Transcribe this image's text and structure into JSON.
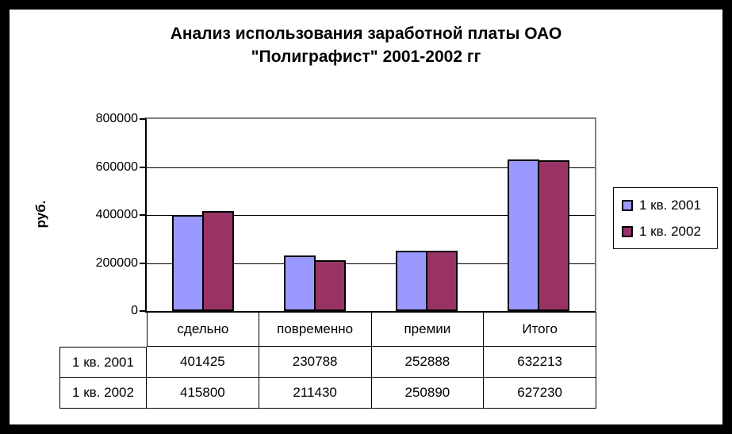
{
  "chart": {
    "title_line1": "Анализ использования заработной платы ОАО",
    "title_line2": "\"Полиграфист\" 2001-2002 гг",
    "ylabel": "руб."
  },
  "chart_data": {
    "type": "bar",
    "title": "Анализ использования заработной платы ОАО \"Полиграфист\" 2001-2002 гг",
    "xlabel": "",
    "ylabel": "руб.",
    "categories": [
      "сдельно",
      "повременно",
      "премии",
      "Итого"
    ],
    "series": [
      {
        "name": "1 кв. 2001",
        "color": "#9999FF",
        "values": [
          401425,
          230788,
          252888,
          632213
        ]
      },
      {
        "name": "1 кв. 2002",
        "color": "#993366",
        "values": [
          415800,
          211430,
          250890,
          627230
        ]
      }
    ],
    "ylim": [
      0,
      800000
    ],
    "yticks": [
      0,
      200000,
      400000,
      600000,
      800000
    ],
    "grid": true,
    "legend_position": "right",
    "data_table_shown": true
  },
  "colors": {
    "series_2001": "#9999FF",
    "series_2002": "#993366",
    "plot_border": "#808080",
    "axis": "#000000",
    "frame": "#000000",
    "background": "#FFFFFF"
  }
}
